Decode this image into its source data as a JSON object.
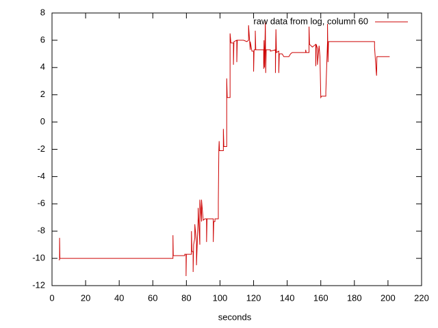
{
  "chart_data": {
    "type": "line",
    "xlabel": "seconds",
    "x": [
      4,
      4.5,
      4.5,
      4.7,
      72,
      72,
      72.2,
      79,
      79,
      79.8,
      79.8,
      80,
      83,
      83,
      83.3,
      84,
      84,
      84.3,
      85,
      85,
      86,
      86,
      87,
      87,
      88,
      88,
      89,
      89,
      90,
      91,
      92,
      92,
      92.3,
      96,
      96,
      96.3,
      97,
      97,
      99,
      99,
      99.3,
      99.5,
      99.7,
      102,
      102,
      102.3,
      104,
      104,
      104.3,
      106,
      106,
      106.5,
      108,
      108,
      108.3,
      110,
      110,
      110.3,
      114,
      116,
      117,
      117,
      118,
      118,
      119,
      120,
      120,
      120.3,
      121,
      121,
      121.3,
      126,
      126,
      126.2,
      126.5,
      127,
      127.2,
      127.5,
      130,
      130,
      133,
      133,
      133.3,
      133.6,
      135,
      135,
      135.3,
      137,
      138,
      141,
      142,
      143,
      151,
      151,
      151.3,
      153,
      153,
      153.3,
      155,
      157,
      157,
      157.3,
      158,
      158,
      159,
      159.5,
      160,
      160.5,
      163,
      163,
      164,
      164,
      164.3,
      164.6,
      192,
      192,
      193,
      193.2,
      193.4,
      201
    ],
    "series": [
      {
        "name": "raw data from log, column 60",
        "color": "#cc0000",
        "values": [
          -10.1,
          -10.1,
          -8.5,
          -10,
          -10,
          -8.3,
          -9.8,
          -9.8,
          -9.7,
          -9.7,
          -11.3,
          -9.7,
          -9.7,
          -8,
          -9.5,
          -9.5,
          -11,
          -9,
          -8.5,
          -7.5,
          -8.8,
          -10.5,
          -7,
          -6.3,
          -9,
          -5.7,
          -7.3,
          -5.7,
          -7.2,
          -7.1,
          -7.1,
          -8.8,
          -7.1,
          -7.1,
          -8.8,
          -7.3,
          -7.3,
          -7.1,
          -7.1,
          -5.9,
          -2.1,
          -1.4,
          -2.1,
          -2.1,
          -0.5,
          -1.8,
          -1.8,
          3.2,
          1.8,
          1.8,
          6.5,
          5.8,
          5.8,
          4.2,
          5.9,
          6,
          4.4,
          6,
          6,
          5.9,
          6,
          7.1,
          5.3,
          5.9,
          5.2,
          5.2,
          3.7,
          5.3,
          5.3,
          6.7,
          5.3,
          5.3,
          3.9,
          6,
          4,
          7.4,
          3.6,
          5.3,
          5.3,
          5.2,
          5.3,
          3.6,
          6.8,
          5.1,
          5.2,
          3.6,
          5,
          5,
          4.8,
          4.8,
          5,
          5.1,
          5.1,
          5.3,
          5.1,
          5.1,
          7,
          5.7,
          5.5,
          5.7,
          4.1,
          5.7,
          5.4,
          4.2,
          5.6,
          4.8,
          1.8,
          1.9,
          1.9,
          2.2,
          5.9,
          7.2,
          4.4,
          5.9,
          5.9,
          5.5,
          3.7,
          3.4,
          4.8,
          4.8
        ]
      }
    ],
    "xlim": [
      0,
      220
    ],
    "xticks": [
      0,
      20,
      40,
      60,
      80,
      100,
      120,
      140,
      160,
      180,
      200,
      220
    ],
    "ylim": [
      -12,
      8
    ],
    "yticks": [
      -12,
      -10,
      -8,
      -6,
      -4,
      -2,
      0,
      2,
      4,
      6,
      8
    ],
    "legend": "top-right"
  }
}
